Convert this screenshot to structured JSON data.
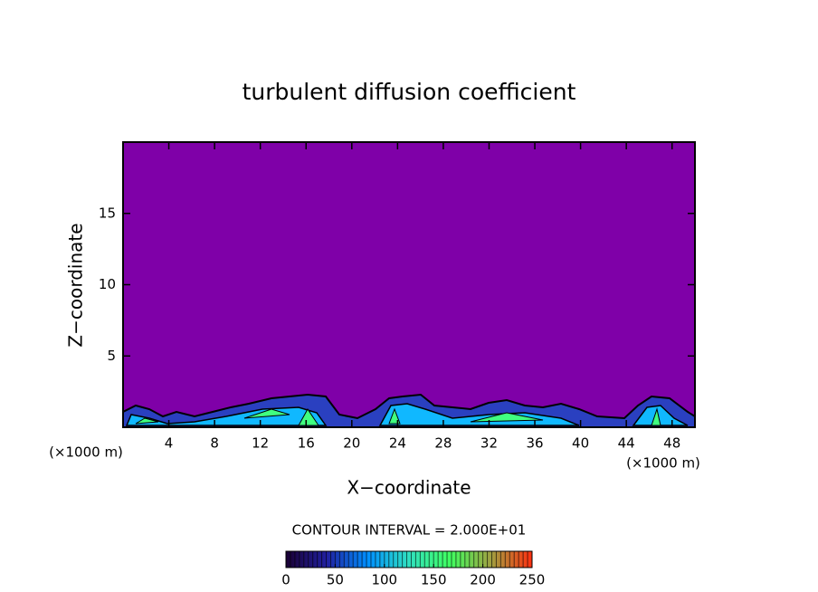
{
  "chart_data": {
    "type": "contour",
    "title": "turbulent diffusion coefficient",
    "x_label": "X−coordinate",
    "y_label": "Z−coordinate",
    "x_unit_label": "(×1000 m)",
    "xlim": [
      0,
      50
    ],
    "xticks": [
      4,
      8,
      12,
      16,
      20,
      24,
      28,
      32,
      36,
      40,
      44,
      48
    ],
    "ylim": [
      0,
      20
    ],
    "yticks": [
      5,
      10,
      15
    ],
    "background_color": "#7f00a8",
    "annotation": "CONTOUR INTERVAL = 2.000E+01",
    "colorbar": {
      "lim": [
        0,
        250
      ],
      "ticks": [
        0,
        50,
        100,
        150,
        200,
        250
      ],
      "colors": [
        "#1a0033",
        "#2020a0",
        "#0090ff",
        "#30e0c0",
        "#40ff60",
        "#a0a040",
        "#ff3010"
      ]
    }
  }
}
